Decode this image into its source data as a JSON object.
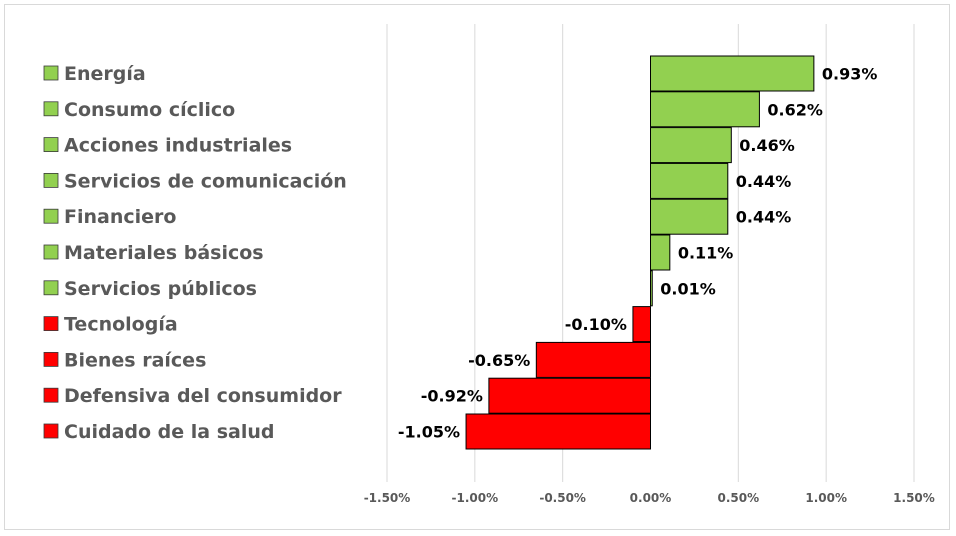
{
  "chart_data": {
    "type": "bar",
    "orientation": "horizontal",
    "categories": [
      "Energía",
      "Consumo cíclico",
      "Acciones industriales",
      "Servicios de comunicación",
      "Financiero",
      "Materiales básicos",
      "Servicios públicos",
      "Tecnología",
      "Bienes raíces",
      "Defensiva del consumidor",
      "Cuidado de la salud"
    ],
    "values": [
      0.93,
      0.62,
      0.46,
      0.44,
      0.44,
      0.11,
      0.01,
      -0.1,
      -0.65,
      -0.92,
      -1.05
    ],
    "data_labels": [
      "0.93%",
      "0.62%",
      "0.46%",
      "0.44%",
      "0.44%",
      "0.11%",
      "0.01%",
      "-0.10%",
      "-0.65%",
      "-0.92%",
      "-1.05%"
    ],
    "xlim": [
      -1.5,
      1.5
    ],
    "x_ticks": [
      -1.5,
      -1.0,
      -0.5,
      0.0,
      0.5,
      1.0,
      1.5
    ],
    "x_tick_labels": [
      "-1.50%",
      "-1.00%",
      "-0.50%",
      "0.00%",
      "0.50%",
      "1.00%",
      "1.50%"
    ],
    "title": "",
    "xlabel": "",
    "ylabel": "",
    "grid": "vertical",
    "legend_placement": "left",
    "colors": {
      "positive": "#92d050",
      "negative": "#ff0000",
      "grid": "#d9d9d9",
      "bar_border": "#000000",
      "legend_text": "#595959"
    }
  }
}
